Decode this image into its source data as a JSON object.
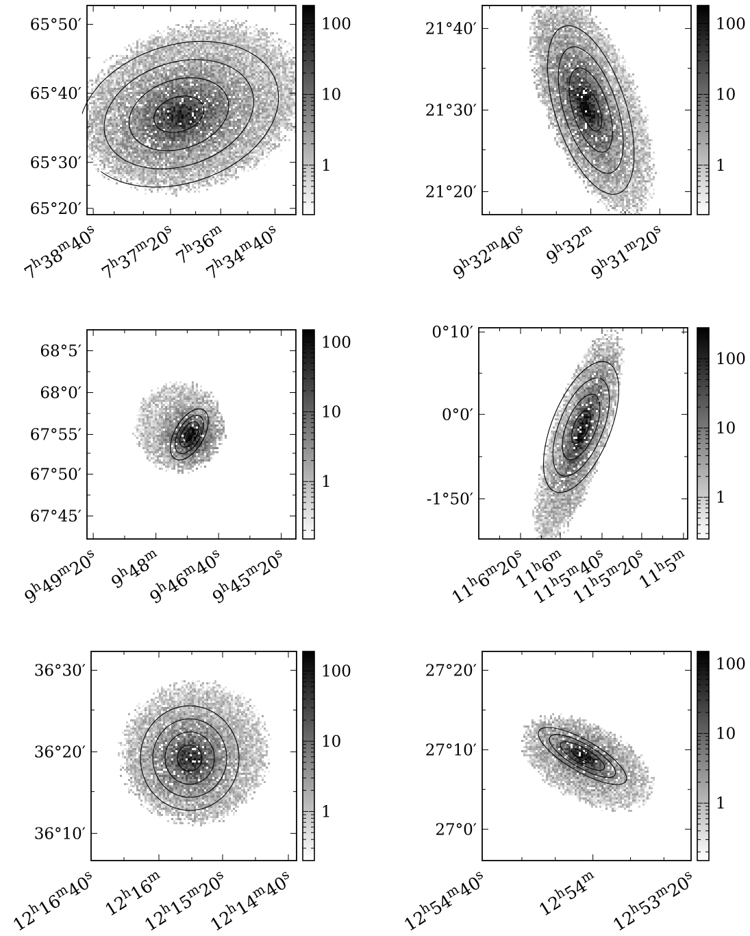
{
  "figure": {
    "colors": {
      "background": "#ffffff",
      "ink": "#000000",
      "colormap": "gray_r"
    }
  },
  "chart_data": [
    {
      "type": "heatmap",
      "panel": "top-left",
      "xlabel": "",
      "ylabel": "",
      "x_tick_labels": [
        "7h38m40s",
        "7h37m20s",
        "7h36m",
        "7h34m40s"
      ],
      "y_tick_labels": [
        "65°50′",
        "65°40′",
        "65°30′",
        "65°20′"
      ],
      "colorbar_tick_labels": [
        "100",
        "10",
        "1"
      ],
      "colorbar_range": [
        0.2,
        180
      ],
      "colorbar_scale": "log",
      "ellipses": {
        "count": 4,
        "center_fraction": [
          0.44,
          0.52
        ],
        "outer_semi_axes_fraction": [
          0.49,
          0.33
        ],
        "angle_deg": -18
      },
      "blob": {
        "center_fraction": [
          0.5,
          0.48
        ],
        "radii_fraction": [
          0.54,
          0.38
        ],
        "angle_deg": -18,
        "peak_fraction": [
          0.45,
          0.52
        ],
        "max_shade": 0.8
      }
    },
    {
      "type": "heatmap",
      "panel": "top-right",
      "xlabel": "",
      "ylabel": "",
      "x_tick_labels": [
        "9h32m40s",
        "9h32m",
        "9h31m20s"
      ],
      "y_tick_labels": [
        "21°40′",
        "21°30′",
        "21°20′"
      ],
      "colorbar_tick_labels": [
        "100",
        "10",
        "1"
      ],
      "colorbar_range": [
        0.2,
        180
      ],
      "colorbar_scale": "log",
      "ellipses": {
        "count": 4,
        "center_fraction": [
          0.52,
          0.5
        ],
        "outer_semi_axes_fraction": [
          0.17,
          0.42
        ],
        "angle_deg": -18
      },
      "blob": {
        "center_fraction": [
          0.52,
          0.46
        ],
        "radii_fraction": [
          0.22,
          0.55
        ],
        "angle_deg": -22,
        "peak_fraction": [
          0.49,
          0.47
        ],
        "max_shade": 0.92
      }
    },
    {
      "type": "heatmap",
      "panel": "middle-left",
      "xlabel": "",
      "ylabel": "",
      "x_tick_labels": [
        "9h49m20s",
        "9h48m",
        "9h46m40s",
        "9h45m20s"
      ],
      "y_tick_labels": [
        "68°5′",
        "68°0′",
        "67°55′",
        "67°50′",
        "67°45′"
      ],
      "colorbar_tick_labels": [
        "100",
        "10",
        "1"
      ],
      "colorbar_range": [
        0.15,
        150
      ],
      "colorbar_scale": "log",
      "ellipses": {
        "count": 4,
        "center_fraction": [
          0.49,
          0.5
        ],
        "outer_semi_axes_fraction": [
          0.07,
          0.135
        ],
        "angle_deg": 30
      },
      "blob": {
        "center_fraction": [
          0.44,
          0.46
        ],
        "radii_fraction": [
          0.21,
          0.21
        ],
        "angle_deg": 0,
        "peak_fraction": [
          0.49,
          0.5
        ],
        "max_shade": 0.95
      }
    },
    {
      "type": "heatmap",
      "panel": "middle-right",
      "xlabel": "",
      "ylabel": "",
      "x_tick_labels": [
        "11h6m20s",
        "11h6m",
        "11h5m40s",
        "11h5m20s",
        "11h5m"
      ],
      "y_tick_labels": [
        "0°10′",
        "0°0′",
        "-1°50′"
      ],
      "colorbar_tick_labels": [
        "100",
        "10",
        "1"
      ],
      "colorbar_range": [
        0.25,
        280
      ],
      "colorbar_scale": "log",
      "ellipses": {
        "count": 4,
        "center_fraction": [
          0.49,
          0.47
        ],
        "outer_semi_axes_fraction": [
          0.14,
          0.33
        ],
        "angle_deg": 22
      },
      "blob": {
        "center_fraction": [
          0.47,
          0.52
        ],
        "radii_fraction": [
          0.13,
          0.52
        ],
        "angle_deg": 18,
        "peak_fraction": [
          0.49,
          0.48
        ],
        "max_shade": 0.95
      }
    },
    {
      "type": "heatmap",
      "panel": "bottom-left",
      "xlabel": "",
      "ylabel": "",
      "x_tick_labels": [
        "12h16m40s",
        "12h16m",
        "12h15m20s",
        "12h14m40s"
      ],
      "y_tick_labels": [
        "36°30′",
        "36°20′",
        "36°10′"
      ],
      "colorbar_tick_labels": [
        "100",
        "10",
        "1"
      ],
      "colorbar_range": [
        0.2,
        190
      ],
      "colorbar_scale": "log",
      "ellipses": {
        "count": 4,
        "center_fraction": [
          0.48,
          0.51
        ],
        "outer_semi_axes_fraction": [
          0.24,
          0.25
        ],
        "angle_deg": 0
      },
      "blob": {
        "center_fraction": [
          0.5,
          0.48
        ],
        "radii_fraction": [
          0.35,
          0.33
        ],
        "angle_deg": -10,
        "peak_fraction": [
          0.48,
          0.51
        ],
        "max_shade": 0.8
      }
    },
    {
      "type": "heatmap",
      "panel": "bottom-right",
      "xlabel": "",
      "ylabel": "",
      "x_tick_labels": [
        "12h54m40s",
        "12h54m",
        "12h53m20s"
      ],
      "y_tick_labels": [
        "27°20′",
        "27°10′",
        "27°0′"
      ],
      "colorbar_tick_labels": [
        "100",
        "10",
        "1"
      ],
      "colorbar_range": [
        0.15,
        150
      ],
      "colorbar_scale": "log",
      "ellipses": {
        "count": 4,
        "center_fraction": [
          0.48,
          0.5
        ],
        "outer_semi_axes_fraction": [
          0.24,
          0.075
        ],
        "angle_deg": 30
      },
      "blob": {
        "center_fraction": [
          0.5,
          0.53
        ],
        "radii_fraction": [
          0.33,
          0.18
        ],
        "angle_deg": 28,
        "peak_fraction": [
          0.48,
          0.5
        ],
        "max_shade": 0.88
      }
    }
  ]
}
